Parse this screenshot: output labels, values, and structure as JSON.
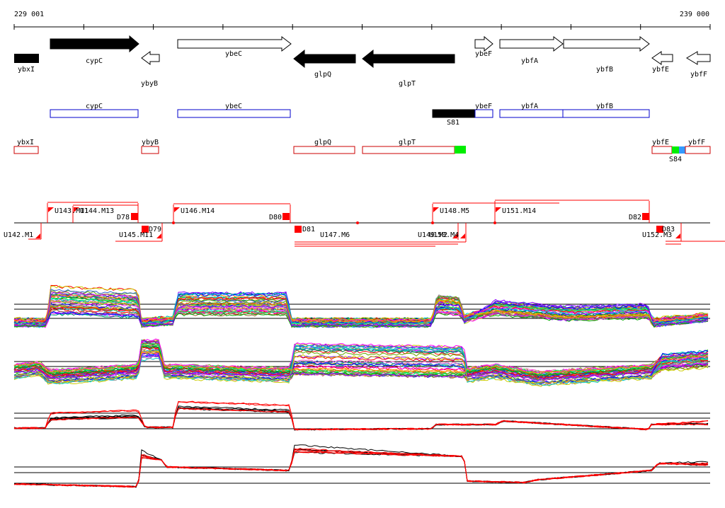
{
  "coords": {
    "start": "229 001",
    "end": "239 000"
  },
  "genes": [
    {
      "label": "ybxI",
      "strand": "+",
      "fill": "black"
    },
    {
      "label": "cypC",
      "strand": "+",
      "fill": "black"
    },
    {
      "label": "ybyB",
      "strand": "-",
      "fill": "white"
    },
    {
      "label": "ybeC",
      "strand": "+",
      "fill": "white"
    },
    {
      "label": "glpQ",
      "strand": "-",
      "fill": "black"
    },
    {
      "label": "glpT",
      "strand": "-",
      "fill": "black"
    },
    {
      "label": "ybeF",
      "strand": "+",
      "fill": "white"
    },
    {
      "label": "ybfA",
      "strand": "+",
      "fill": "white"
    },
    {
      "label": "ybfB",
      "strand": "+",
      "fill": "white"
    },
    {
      "label": "ybfE",
      "strand": "-",
      "fill": "white"
    },
    {
      "label": "ybfF",
      "strand": "-",
      "fill": "white"
    }
  ],
  "blue_track": {
    "boxes": [
      "cypC",
      "ybeC",
      "ybeF",
      "ybfA",
      "ybfB"
    ],
    "segment_label": "S81",
    "color": "#0000cc"
  },
  "red_track": {
    "boxes": [
      "ybxI",
      "ybyB",
      "glpQ",
      "glpT",
      "ybfE",
      "ybfF"
    ],
    "segment_label": "S84",
    "color": "#cc0000",
    "marker_colors": [
      "#00ee00",
      "#3399ff"
    ]
  },
  "upper_features": [
    "U143.M11",
    "U144.M13",
    "D78",
    "U146.M14",
    "D80",
    "U148.M5",
    "U151.M14",
    "D82"
  ],
  "lower_features": [
    "U142.M1",
    "U145.M11",
    "D79",
    "D81",
    "U147.M6",
    "U149.M2",
    "U150.M4",
    "U152.M3",
    "D83"
  ],
  "signal_panels": [
    {
      "name": "forward-multi",
      "style": "multicolor"
    },
    {
      "name": "reverse-multi",
      "style": "multicolor"
    },
    {
      "name": "forward-summary",
      "style": "black-red"
    },
    {
      "name": "reverse-summary",
      "style": "black-red"
    }
  ],
  "colors": {
    "feature_red": "#ff0000",
    "summary_black": "#000000",
    "summary_red": "#ff0000",
    "palette": [
      "#ff0000",
      "#00aa00",
      "#0000ff",
      "#ff00ff",
      "#00cccc",
      "#cccc00",
      "#ff8800",
      "#8800ff",
      "#888888",
      "#009966",
      "#cc3366",
      "#66aa00",
      "#3366cc",
      "#996633",
      "#ff66cc",
      "#00ff66"
    ]
  }
}
